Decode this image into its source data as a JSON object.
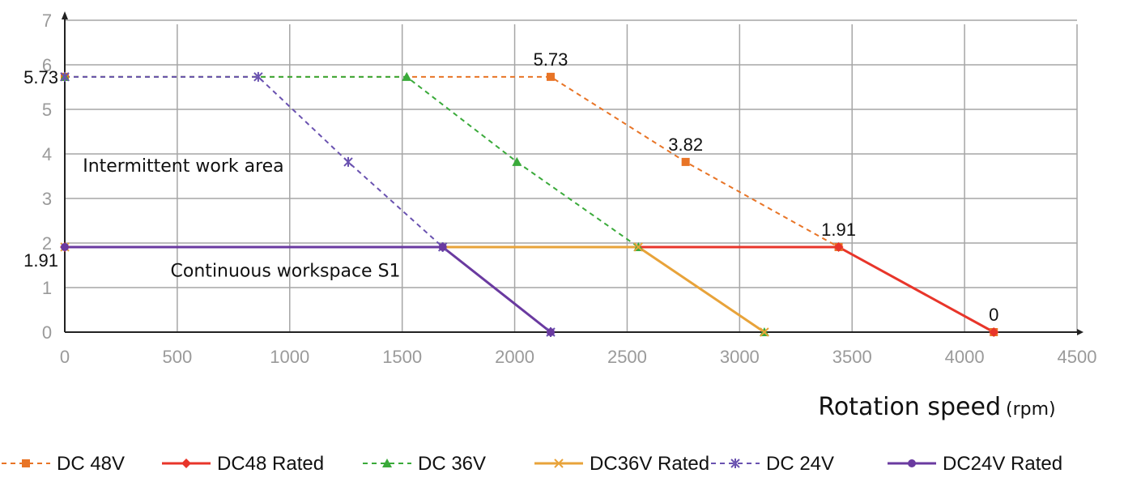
{
  "chart_data": {
    "type": "line",
    "xlabel": "Rotation speed",
    "xunit": "(rpm)",
    "ylabel": "",
    "xlim": [
      0,
      4500
    ],
    "ylim": [
      0,
      7
    ],
    "xticks": [
      0,
      500,
      1000,
      1500,
      2000,
      2500,
      3000,
      3500,
      4000,
      4500
    ],
    "yticks": [
      0,
      1,
      2,
      3,
      4,
      5,
      6,
      7
    ],
    "grid": true,
    "legend_position": "bottom",
    "series": [
      {
        "name": "DC  48V",
        "color": "#e87426",
        "dash": true,
        "marker": "square",
        "x": [
          0,
          2160,
          2760,
          3440,
          4130
        ],
        "y": [
          5.73,
          5.73,
          3.82,
          1.91,
          0
        ]
      },
      {
        "name": "DC48  Rated",
        "color": "#e8352a",
        "dash": false,
        "marker": "diamond",
        "x": [
          0,
          3440,
          4130
        ],
        "y": [
          1.91,
          1.91,
          0
        ]
      },
      {
        "name": "DC  36V",
        "color": "#3aaa3a",
        "dash": true,
        "marker": "triangle",
        "x": [
          0,
          1520,
          2010,
          2550,
          3110
        ],
        "y": [
          5.73,
          5.73,
          3.82,
          1.91,
          0
        ]
      },
      {
        "name": "DC36V  Rated",
        "color": "#e8a33a",
        "dash": false,
        "marker": "x",
        "x": [
          0,
          2550,
          3110
        ],
        "y": [
          1.91,
          1.91,
          0
        ]
      },
      {
        "name": "DC  24V",
        "color": "#6a52b0",
        "dash": true,
        "marker": "star",
        "x": [
          0,
          860,
          1260,
          1680,
          2160
        ],
        "y": [
          5.73,
          5.73,
          3.82,
          1.91,
          0
        ]
      },
      {
        "name": "DC24V  Rated",
        "color": "#6a3aa0",
        "dash": false,
        "marker": "circle",
        "x": [
          0,
          1680,
          2160
        ],
        "y": [
          1.91,
          1.91,
          0
        ]
      }
    ],
    "annotations": [
      {
        "text": "5.73",
        "x": 2160,
        "y": 5.73
      },
      {
        "text": "3.82",
        "x": 2760,
        "y": 3.82
      },
      {
        "text": "1.91",
        "x": 3440,
        "y": 1.91
      },
      {
        "text": "0",
        "x": 4130,
        "y": 0
      },
      {
        "text": "5.73",
        "x": 0,
        "y": 5.73
      },
      {
        "text": "1.91",
        "x": 0,
        "y": 1.91
      }
    ],
    "area_labels": [
      {
        "text": "Intermittent work area",
        "x": 80,
        "y": 3.6
      },
      {
        "text": "Continuous workspace S1",
        "x": 470,
        "y": 1.25
      }
    ]
  }
}
